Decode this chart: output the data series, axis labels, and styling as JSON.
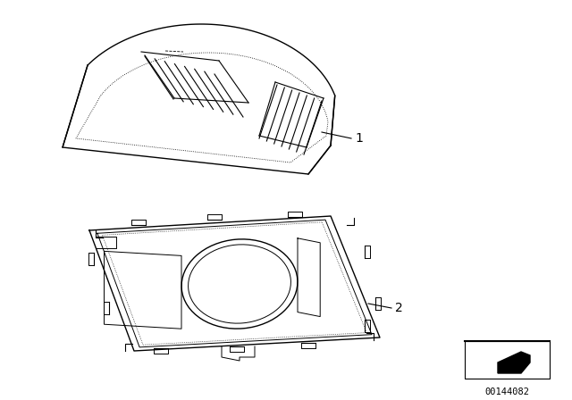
{
  "background_color": "#ffffff",
  "part_number": "00144082",
  "label1": "1",
  "label2": "2",
  "line_color": "#000000",
  "figsize": [
    6.4,
    4.48
  ],
  "dpi": 100
}
